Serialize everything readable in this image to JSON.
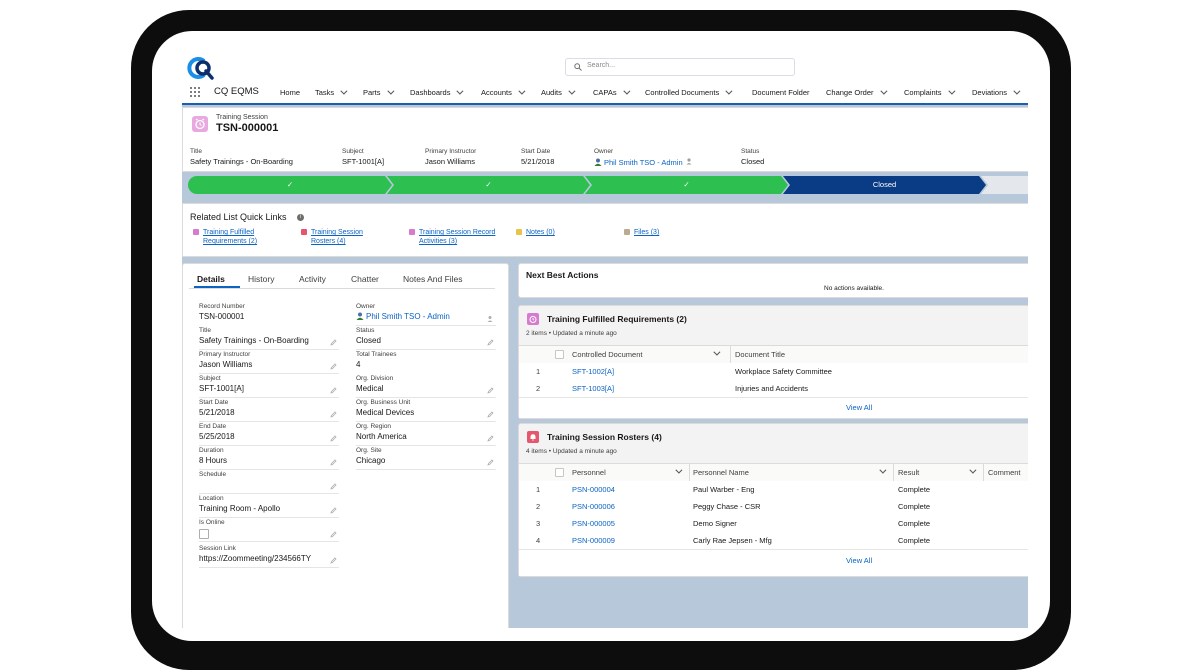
{
  "app": {
    "name": "CQ EQMS",
    "search_placeholder": "Search..."
  },
  "nav": [
    "Home",
    "Tasks",
    "Parts",
    "Dashboards",
    "Accounts",
    "Audits",
    "CAPAs",
    "Controlled Documents",
    "Document Folder",
    "Change Order",
    "Complaints",
    "Deviations"
  ],
  "record": {
    "object_type": "Training Session",
    "name": "TSN-000001",
    "fields": [
      {
        "label": "Title",
        "value": "Safety Trainings - On-Boarding"
      },
      {
        "label": "Subject",
        "value": "SFT-1001[A]"
      },
      {
        "label": "Primary Instructor",
        "value": "Jason Williams"
      },
      {
        "label": "Start Date",
        "value": "5/21/2018"
      },
      {
        "label": "Owner",
        "value": "Phil Smith TSO - Admin"
      },
      {
        "label": "Status",
        "value": "Closed"
      }
    ]
  },
  "path": {
    "current": "Closed",
    "check": "✓"
  },
  "quick_links": {
    "title": "Related List Quick Links",
    "info": "i",
    "items": [
      {
        "line1": "Training Fulfilled",
        "line2": "Requirements (2)",
        "color": "#d77bcf"
      },
      {
        "line1": "Training Session",
        "line2": "Rosters (4)",
        "color": "#e5566f"
      },
      {
        "line1": "Training Session Record",
        "line2": "Activities (3)",
        "color": "#d77bcf"
      },
      {
        "line1": "Notes (0)",
        "line2": "",
        "color": "#e8c44a"
      },
      {
        "line1": "Files (3)",
        "line2": "",
        "color": "#b9ac91"
      }
    ]
  },
  "details": {
    "tabs": [
      "Details",
      "History",
      "Activity",
      "Chatter",
      "Notes And Files"
    ],
    "left": [
      {
        "label": "Record Number",
        "value": "TSN-000001"
      },
      {
        "label": "Title",
        "value": "Safety Trainings - On-Boarding"
      },
      {
        "label": "Primary Instructor",
        "value": "Jason Williams"
      },
      {
        "label": "Subject",
        "value": "SFT-1001[A]"
      },
      {
        "label": "Start Date",
        "value": "5/21/2018"
      },
      {
        "label": "End Date",
        "value": "5/25/2018"
      },
      {
        "label": "Duration",
        "value": "8 Hours"
      },
      {
        "label": "Schedule",
        "value": ""
      },
      {
        "label": "Location",
        "value": "Training Room - Apollo"
      },
      {
        "label": "Is Online",
        "value": ""
      },
      {
        "label": "Session Link",
        "value": "https://Zoommeeting/234566TY"
      }
    ],
    "right": [
      {
        "label": "Owner",
        "value": "Phil Smith TSO - Admin"
      },
      {
        "label": "Status",
        "value": "Closed"
      },
      {
        "label": "Total Trainees",
        "value": "4"
      },
      {
        "label": "Org. Division",
        "value": "Medical"
      },
      {
        "label": "Org. Business Unit",
        "value": "Medical Devices"
      },
      {
        "label": "Org. Region",
        "value": "North America"
      },
      {
        "label": "Org. Site",
        "value": "Chicago"
      }
    ]
  },
  "next_best": {
    "title": "Next Best Actions",
    "empty": "No actions available."
  },
  "requirements": {
    "title": "Training Fulfilled Requirements (2)",
    "meta": "2 items • Updated a minute ago",
    "columns": [
      "Controlled Document",
      "Document Title"
    ],
    "rows": [
      {
        "n": "1",
        "doc": "SFT-1002[A]",
        "title": "Workplace Safety Committee"
      },
      {
        "n": "2",
        "doc": "SFT-1003[A]",
        "title": "Injuries and Accidents"
      }
    ],
    "view_all": "View All"
  },
  "rosters": {
    "title": "Training Session Rosters (4)",
    "meta": "4 items • Updated a minute ago",
    "columns": [
      "Personnel",
      "Personnel Name",
      "Result",
      "Comment"
    ],
    "rows": [
      {
        "n": "1",
        "id": "PSN-000004",
        "name": "Paul Warber - Eng",
        "result": "Complete"
      },
      {
        "n": "2",
        "id": "PSN-000006",
        "name": "Peggy Chase - CSR",
        "result": "Complete"
      },
      {
        "n": "3",
        "id": "PSN-000005",
        "name": "Demo Signer",
        "result": "Complete"
      },
      {
        "n": "4",
        "id": "PSN-000009",
        "name": "Carly Rae Jepsen - Mfg",
        "result": "Complete"
      }
    ],
    "view_all": "View All"
  }
}
